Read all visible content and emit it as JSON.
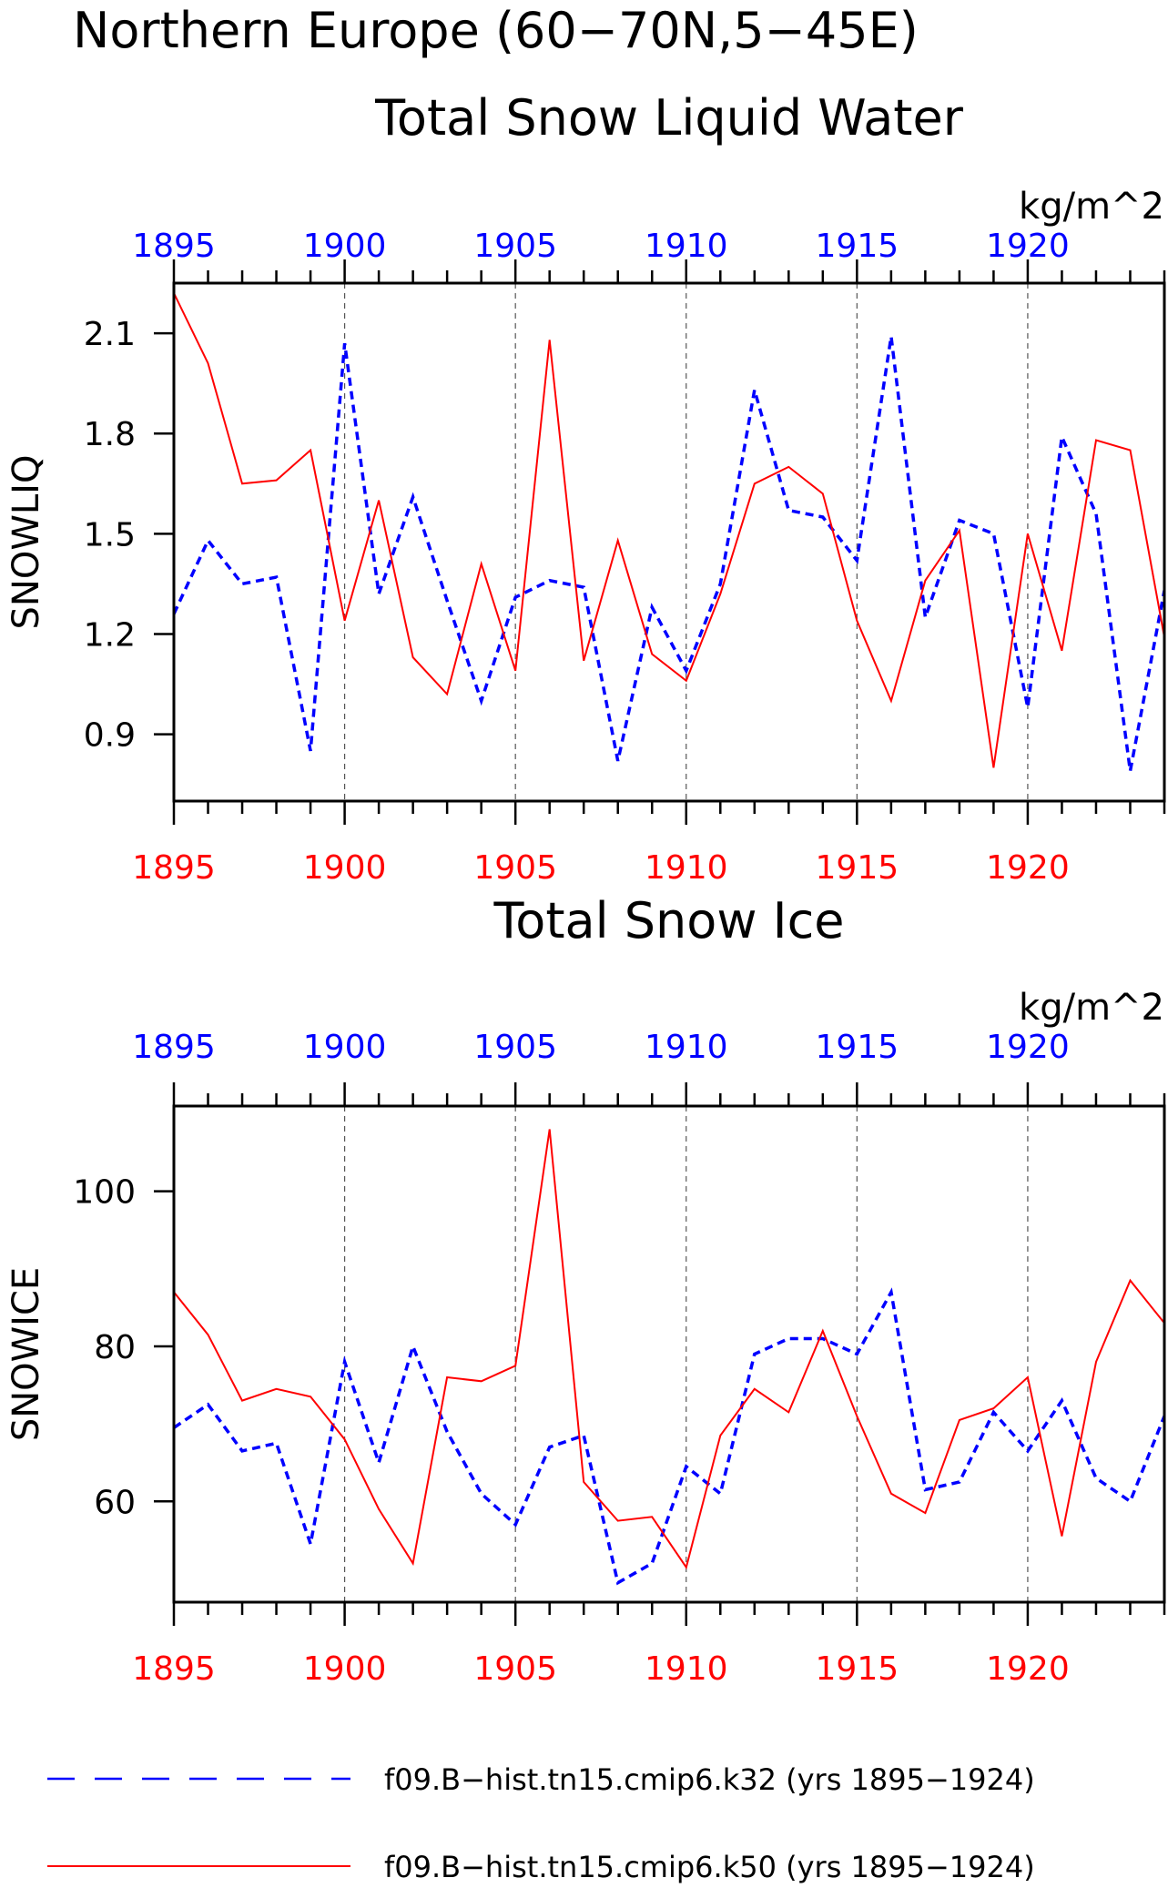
{
  "header": {
    "title_line1": "Northern Europe (60−70N,5−45E)"
  },
  "colors": {
    "series_k32": "#0000ff",
    "series_k50": "#ff0000",
    "axis": "#000000"
  },
  "legend": {
    "items": [
      {
        "label": "f09.B−hist.tn15.cmip6.k32 (yrs 1895−1924)",
        "color": "#0000ff",
        "style": "dashed"
      },
      {
        "label": "f09.B−hist.tn15.cmip6.k50 (yrs 1895−1924)",
        "color": "#ff0000",
        "style": "solid"
      }
    ]
  },
  "chart_data": [
    {
      "type": "line",
      "title": "Total Snow Liquid Water",
      "units": "kg/m^2",
      "ylabel": "SNOWLIQ",
      "xlim": [
        1895,
        1924
      ],
      "ylim": [
        0.7,
        2.25
      ],
      "yticks": [
        0.9,
        1.2,
        1.5,
        1.8,
        2.1
      ],
      "ytick_labels": [
        "0.9",
        "1.2",
        "1.5",
        "1.8",
        "2.1"
      ],
      "xticks": [
        1895,
        1900,
        1905,
        1910,
        1915,
        1920
      ],
      "top_xtick_labels": [
        "1895",
        "1900",
        "1905",
        "1910",
        "1915",
        "1920"
      ],
      "bottom_xtick_labels": [
        "1895",
        "1900",
        "1905",
        "1910",
        "1915",
        "1920"
      ],
      "grid": "vertical dashed at labeled years",
      "x": [
        1895,
        1896,
        1897,
        1898,
        1899,
        1900,
        1901,
        1902,
        1903,
        1904,
        1905,
        1906,
        1907,
        1908,
        1909,
        1910,
        1911,
        1912,
        1913,
        1914,
        1915,
        1916,
        1917,
        1918,
        1919,
        1920,
        1921,
        1922,
        1923,
        1924
      ],
      "series": [
        {
          "name": "f09.B-hist.tn15.cmip6.k32",
          "color": "#0000ff",
          "style": "dashed",
          "values": [
            1.26,
            1.48,
            1.35,
            1.37,
            0.85,
            2.07,
            1.32,
            1.61,
            1.3,
            1.0,
            1.31,
            1.36,
            1.34,
            0.82,
            1.28,
            1.09,
            1.35,
            1.93,
            1.57,
            1.55,
            1.42,
            2.09,
            1.25,
            1.54,
            1.5,
            0.98,
            1.79,
            1.56,
            0.79,
            1.33
          ]
        },
        {
          "name": "f09.B-hist.tn15.cmip6.k50",
          "color": "#ff0000",
          "style": "solid",
          "values": [
            2.22,
            2.01,
            1.65,
            1.66,
            1.75,
            1.24,
            1.6,
            1.13,
            1.02,
            1.41,
            1.09,
            2.08,
            1.12,
            1.48,
            1.14,
            1.06,
            1.32,
            1.65,
            1.7,
            1.62,
            1.24,
            1.0,
            1.36,
            1.51,
            0.8,
            1.5,
            1.15,
            1.78,
            1.75,
            1.19
          ]
        }
      ]
    },
    {
      "type": "line",
      "title": "Total Snow Ice",
      "units": "kg/m^2",
      "ylabel": "SNOWICE",
      "xlim": [
        1895,
        1924
      ],
      "ylim": [
        47,
        111
      ],
      "yticks": [
        60,
        80,
        100
      ],
      "ytick_labels": [
        "60",
        "80",
        "100"
      ],
      "xticks": [
        1895,
        1900,
        1905,
        1910,
        1915,
        1920
      ],
      "top_xtick_labels": [
        "1895",
        "1900",
        "1905",
        "1910",
        "1915",
        "1920"
      ],
      "bottom_xtick_labels": [
        "1895",
        "1900",
        "1905",
        "1910",
        "1915",
        "1920"
      ],
      "grid": "vertical dashed at labeled years",
      "x": [
        1895,
        1896,
        1897,
        1898,
        1899,
        1900,
        1901,
        1902,
        1903,
        1904,
        1905,
        1906,
        1907,
        1908,
        1909,
        1910,
        1911,
        1912,
        1913,
        1914,
        1915,
        1916,
        1917,
        1918,
        1919,
        1920,
        1921,
        1922,
        1923,
        1924
      ],
      "series": [
        {
          "name": "f09.B-hist.tn15.cmip6.k32",
          "color": "#0000ff",
          "style": "dashed",
          "values": [
            69.5,
            72.5,
            66.5,
            67.5,
            54.5,
            78.0,
            65.0,
            80.0,
            69.0,
            61.0,
            57.0,
            67.0,
            68.5,
            49.5,
            52.0,
            64.5,
            61.0,
            79.0,
            81.0,
            81.0,
            79.0,
            87.0,
            61.5,
            62.5,
            71.5,
            66.5,
            73.0,
            63.0,
            60.0,
            71.0
          ]
        },
        {
          "name": "f09.B-hist.tn15.cmip6.k50",
          "color": "#ff0000",
          "style": "solid",
          "values": [
            87.0,
            81.5,
            73.0,
            74.5,
            73.5,
            68.0,
            59.0,
            52.0,
            76.0,
            75.5,
            77.5,
            108.0,
            62.5,
            57.5,
            58.0,
            51.5,
            68.5,
            74.5,
            71.5,
            82.0,
            71.0,
            61.0,
            58.5,
            70.5,
            72.0,
            76.0,
            55.5,
            78.0,
            88.5,
            83.0
          ]
        }
      ]
    }
  ]
}
